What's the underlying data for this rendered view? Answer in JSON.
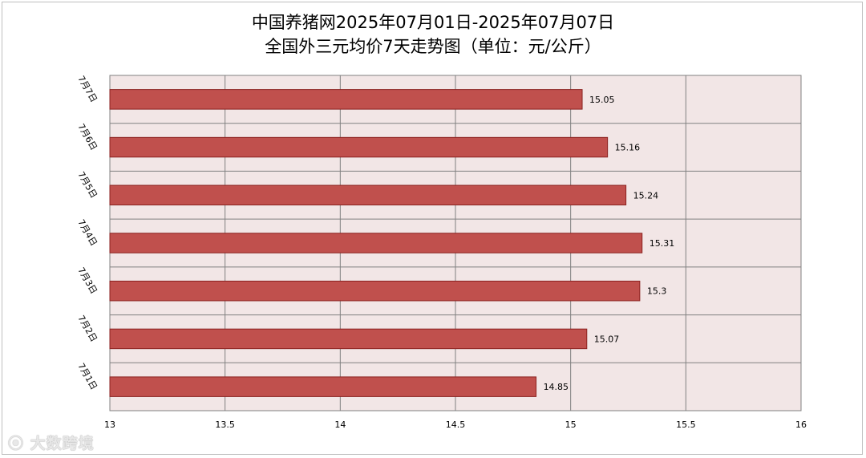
{
  "chart_data": {
    "type": "bar",
    "orientation": "horizontal",
    "title": "中国养猪网2025年07月01日-2025年07月07日",
    "subtitle": "全国外三元均价7天走势图（单位：元/公斤）",
    "categories": [
      "7月7日",
      "7月6日",
      "7月5日",
      "7月4日",
      "7月3日",
      "7月2日",
      "7月1日"
    ],
    "values": [
      15.05,
      15.16,
      15.24,
      15.31,
      15.3,
      15.07,
      14.85
    ],
    "value_labels": [
      "15.05",
      "15.16",
      "15.24",
      "15.31",
      "15.3",
      "15.07",
      "14.85"
    ],
    "xlim": [
      13,
      16
    ],
    "x_ticks": [
      "13",
      "13.5",
      "14",
      "14.5",
      "15",
      "15.5",
      "16"
    ],
    "grid": true,
    "legend": "none",
    "bar_color": "#c0504d",
    "bar_border": "#8b2220",
    "plot_background": "#f2e6e6"
  },
  "watermark": {
    "text": "大数跨境",
    "icon": "owl-logo-icon"
  }
}
